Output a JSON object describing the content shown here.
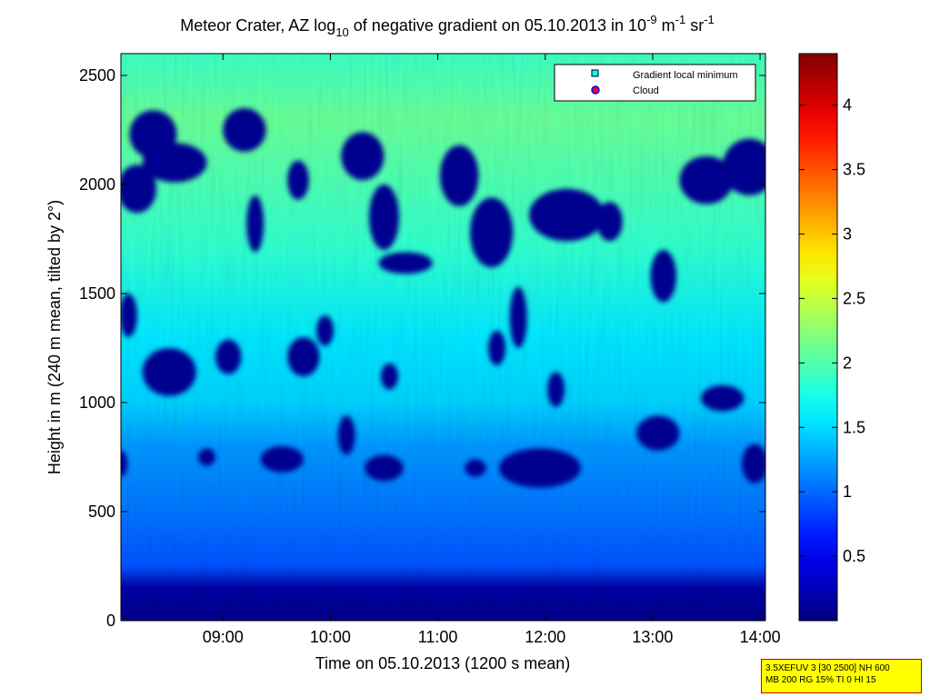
{
  "chart_data": {
    "type": "heatmap",
    "title": {
      "part1": "Meteor Crater, AZ log",
      "sub1": "10",
      "part2": " of negative gradient on 05.10.2013 in 10",
      "sup1": "-9",
      "part3": " m",
      "sup2": "-1",
      "part4": " sr",
      "sup3": "-1"
    },
    "xlabel": "Time on 05.10.2013 (1200 s mean)",
    "ylabel": "Height in m (240 m mean, tilted by 2°)",
    "xlim_hours": [
      8.05,
      14.05
    ],
    "ylim": [
      0,
      2600
    ],
    "x_ticks": [
      {
        "value": 9,
        "label": "09:00"
      },
      {
        "value": 10,
        "label": "10:00"
      },
      {
        "value": 11,
        "label": "11:00"
      },
      {
        "value": 12,
        "label": "12:00"
      },
      {
        "value": 13,
        "label": "13:00"
      },
      {
        "value": 14,
        "label": "14:00"
      }
    ],
    "y_ticks": [
      {
        "value": 0,
        "label": "0"
      },
      {
        "value": 500,
        "label": "500"
      },
      {
        "value": 1000,
        "label": "1000"
      },
      {
        "value": 1500,
        "label": "1500"
      },
      {
        "value": 2000,
        "label": "2000"
      },
      {
        "value": 2500,
        "label": "2500"
      }
    ],
    "colorbar": {
      "colormap": "jet",
      "range": [
        0,
        4.4
      ],
      "ticks": [
        {
          "value": 0.5,
          "label": "0.5"
        },
        {
          "value": 1,
          "label": "1"
        },
        {
          "value": 1.5,
          "label": "1.5"
        },
        {
          "value": 2,
          "label": "2"
        },
        {
          "value": 2.5,
          "label": "2.5"
        },
        {
          "value": 3,
          "label": "3"
        },
        {
          "value": 3.5,
          "label": "3.5"
        },
        {
          "value": 4,
          "label": "4"
        }
      ]
    },
    "legend": {
      "placement": "top-right",
      "entries": [
        {
          "label": "Gradient local minimum",
          "marker": "square",
          "color": "#00ffff"
        },
        {
          "label": "Cloud",
          "marker": "circle",
          "color": "#ff0000"
        }
      ]
    },
    "heatmap_profile": [
      {
        "height": 0,
        "value": 0.05
      },
      {
        "height": 150,
        "value": 0.15
      },
      {
        "height": 250,
        "value": 0.9
      },
      {
        "height": 500,
        "value": 1.05
      },
      {
        "height": 800,
        "value": 1.2
      },
      {
        "height": 1000,
        "value": 1.45
      },
      {
        "height": 1300,
        "value": 1.55
      },
      {
        "height": 1700,
        "value": 1.85
      },
      {
        "height": 2300,
        "value": 2.1
      },
      {
        "height": 2600,
        "value": 1.9
      }
    ],
    "low_gradient_regions": [
      {
        "t": 8.35,
        "h": 2230,
        "rt": 0.22,
        "rh": 110
      },
      {
        "t": 8.55,
        "h": 2100,
        "rt": 0.3,
        "rh": 90
      },
      {
        "t": 8.2,
        "h": 1980,
        "rt": 0.18,
        "rh": 110
      },
      {
        "t": 9.2,
        "h": 2250,
        "rt": 0.2,
        "rh": 100
      },
      {
        "t": 9.3,
        "h": 1820,
        "rt": 0.08,
        "rh": 130
      },
      {
        "t": 9.7,
        "h": 2020,
        "rt": 0.1,
        "rh": 90
      },
      {
        "t": 10.3,
        "h": 2130,
        "rt": 0.2,
        "rh": 110
      },
      {
        "t": 10.5,
        "h": 1850,
        "rt": 0.14,
        "rh": 150
      },
      {
        "t": 10.7,
        "h": 1640,
        "rt": 0.25,
        "rh": 50
      },
      {
        "t": 11.2,
        "h": 2040,
        "rt": 0.18,
        "rh": 140
      },
      {
        "t": 11.5,
        "h": 1780,
        "rt": 0.2,
        "rh": 160
      },
      {
        "t": 12.2,
        "h": 1860,
        "rt": 0.35,
        "rh": 120
      },
      {
        "t": 12.6,
        "h": 1830,
        "rt": 0.12,
        "rh": 90
      },
      {
        "t": 13.1,
        "h": 1580,
        "rt": 0.12,
        "rh": 120
      },
      {
        "t": 13.5,
        "h": 2020,
        "rt": 0.25,
        "rh": 110
      },
      {
        "t": 13.9,
        "h": 2080,
        "rt": 0.25,
        "rh": 130
      },
      {
        "t": 8.12,
        "h": 1400,
        "rt": 0.08,
        "rh": 100
      },
      {
        "t": 8.5,
        "h": 1140,
        "rt": 0.25,
        "rh": 110
      },
      {
        "t": 9.05,
        "h": 1210,
        "rt": 0.12,
        "rh": 80
      },
      {
        "t": 9.75,
        "h": 1210,
        "rt": 0.15,
        "rh": 90
      },
      {
        "t": 9.95,
        "h": 1330,
        "rt": 0.08,
        "rh": 70
      },
      {
        "t": 10.55,
        "h": 1120,
        "rt": 0.08,
        "rh": 60
      },
      {
        "t": 11.55,
        "h": 1250,
        "rt": 0.08,
        "rh": 80
      },
      {
        "t": 11.75,
        "h": 1390,
        "rt": 0.08,
        "rh": 140
      },
      {
        "t": 12.1,
        "h": 1060,
        "rt": 0.08,
        "rh": 80
      },
      {
        "t": 13.65,
        "h": 1020,
        "rt": 0.2,
        "rh": 60
      },
      {
        "t": 8.85,
        "h": 750,
        "rt": 0.08,
        "rh": 40
      },
      {
        "t": 9.55,
        "h": 740,
        "rt": 0.2,
        "rh": 60
      },
      {
        "t": 10.15,
        "h": 850,
        "rt": 0.08,
        "rh": 90
      },
      {
        "t": 10.5,
        "h": 700,
        "rt": 0.18,
        "rh": 60
      },
      {
        "t": 11.35,
        "h": 700,
        "rt": 0.1,
        "rh": 40
      },
      {
        "t": 11.95,
        "h": 700,
        "rt": 0.38,
        "rh": 90
      },
      {
        "t": 13.05,
        "h": 860,
        "rt": 0.2,
        "rh": 80
      },
      {
        "t": 13.95,
        "h": 720,
        "rt": 0.12,
        "rh": 90
      },
      {
        "t": 8.05,
        "h": 720,
        "rt": 0.06,
        "rh": 60
      }
    ]
  },
  "info_box": {
    "line1": "3.5XEFUV 3 [30 2500] NH 600",
    "line2": "MB 200 RG 15% TI 0 HI 15"
  }
}
